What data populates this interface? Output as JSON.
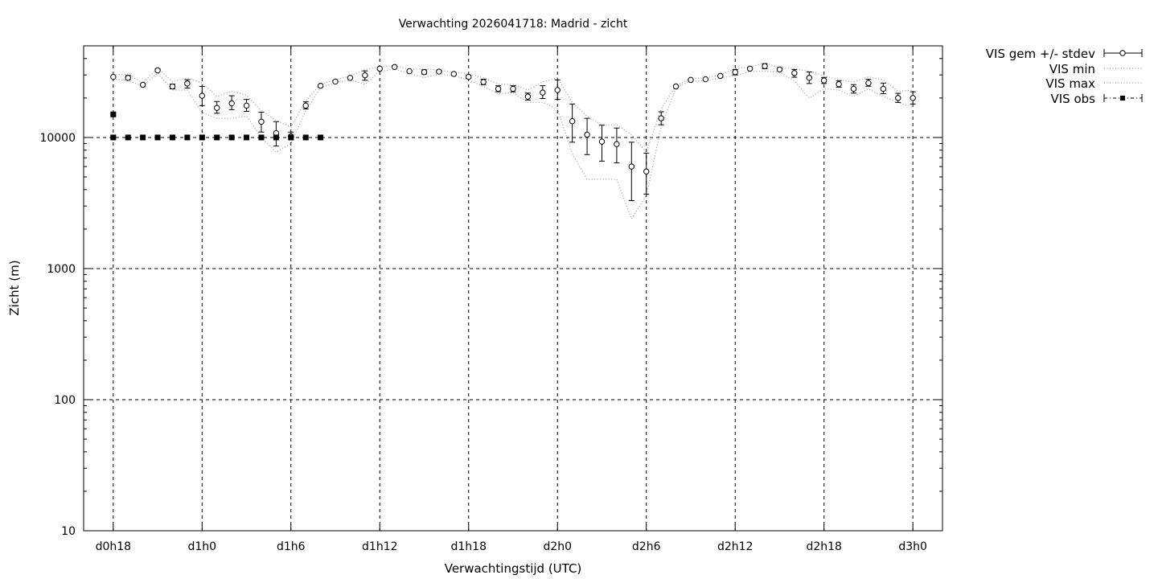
{
  "chart_data": {
    "type": "line",
    "title": "Verwachting 2026041718: Madrid - zicht",
    "xlabel": "Verwachtingstijd (UTC)",
    "ylabel": "Zicht (m)",
    "yscale": "log",
    "ylim": [
      10,
      50000
    ],
    "xlim": [
      -2,
      56
    ],
    "grid": true,
    "legend_position": "outside-top-right",
    "x_ticks": [
      {
        "x": 0,
        "label": "d0h18"
      },
      {
        "x": 6,
        "label": "d1h0"
      },
      {
        "x": 12,
        "label": "d1h6"
      },
      {
        "x": 18,
        "label": "d1h12"
      },
      {
        "x": 24,
        "label": "d1h18"
      },
      {
        "x": 30,
        "label": "d2h0"
      },
      {
        "x": 36,
        "label": "d2h6"
      },
      {
        "x": 42,
        "label": "d2h12"
      },
      {
        "x": 48,
        "label": "d2h18"
      },
      {
        "x": 54,
        "label": "d3h0"
      }
    ],
    "y_ticks": [
      {
        "y": 10,
        "label": "10"
      },
      {
        "y": 100,
        "label": "100"
      },
      {
        "y": 1000,
        "label": "1000"
      },
      {
        "y": 10000,
        "label": "10000"
      }
    ],
    "series": [
      {
        "name": "VIS gem +/- stdev",
        "style": "errorbars",
        "x": [
          0,
          1,
          2,
          3,
          4,
          5,
          6,
          7,
          8,
          9,
          10,
          11,
          12,
          13,
          14,
          15,
          16,
          17,
          18,
          19,
          20,
          21,
          22,
          23,
          24,
          25,
          26,
          27,
          28,
          29,
          30,
          31,
          32,
          33,
          34,
          35,
          36,
          37,
          38,
          39,
          40,
          41,
          42,
          43,
          44,
          45,
          46,
          47,
          48,
          49,
          50,
          51,
          52,
          53,
          54
        ],
        "y": [
          29000,
          28500,
          25200,
          32500,
          24500,
          25800,
          20800,
          16800,
          18200,
          17500,
          13200,
          10800,
          10200,
          17500,
          24800,
          26700,
          28500,
          29800,
          33500,
          34500,
          32000,
          31500,
          31800,
          30500,
          29000,
          26500,
          23500,
          23500,
          20500,
          22000,
          23000,
          13300,
          10500,
          9300,
          8900,
          6000,
          5500,
          14000,
          24500,
          27500,
          27800,
          29500,
          31500,
          33500,
          35000,
          33000,
          31000,
          28500,
          27200,
          25500,
          23500,
          26000,
          23500,
          20000,
          20000
        ],
        "low": [
          29000,
          27600,
          25200,
          32500,
          23500,
          23800,
          17500,
          15300,
          16300,
          15800,
          11000,
          8600,
          9600,
          16500,
          24800,
          26700,
          28500,
          27300,
          33500,
          34500,
          32000,
          30500,
          31800,
          30500,
          28200,
          25300,
          22300,
          22300,
          19300,
          19800,
          19500,
          9200,
          7400,
          6600,
          6400,
          3300,
          3700,
          12500,
          24500,
          27500,
          27800,
          29500,
          30000,
          33500,
          33500,
          33000,
          28800,
          25800,
          25800,
          24200,
          21800,
          24600,
          21600,
          18500,
          18000
        ],
        "high": [
          29000,
          29700,
          25200,
          33300,
          25500,
          27600,
          24500,
          18800,
          20800,
          19500,
          15600,
          13200,
          11000,
          18700,
          24800,
          26700,
          28500,
          32200,
          33500,
          34500,
          32000,
          32800,
          31800,
          30500,
          29800,
          27800,
          24800,
          24800,
          21800,
          24800,
          27500,
          18000,
          14000,
          12400,
          11800,
          9200,
          7600,
          15700,
          24500,
          27500,
          27800,
          29500,
          33000,
          33500,
          36500,
          33000,
          33000,
          31600,
          28700,
          27000,
          25300,
          27800,
          26000,
          21700,
          22300
        ],
        "color": "#000000"
      },
      {
        "name": "VIS min",
        "style": "dotted",
        "x": [
          0,
          1,
          2,
          3,
          4,
          5,
          6,
          7,
          8,
          9,
          10,
          11,
          12,
          13,
          14,
          15,
          16,
          17,
          18,
          19,
          20,
          21,
          22,
          23,
          24,
          25,
          26,
          27,
          28,
          29,
          30,
          31,
          32,
          33,
          34,
          35,
          36,
          37,
          38,
          39,
          40,
          41,
          42,
          43,
          44,
          45,
          46,
          47,
          48,
          49,
          50,
          51,
          52,
          53,
          54
        ],
        "y": [
          28000,
          27000,
          24800,
          31000,
          23000,
          23000,
          15500,
          14000,
          14000,
          14500,
          10000,
          7700,
          9000,
          16000,
          24000,
          26000,
          27500,
          25500,
          32000,
          33000,
          31000,
          28500,
          30500,
          29500,
          27500,
          24500,
          21500,
          22000,
          18500,
          18500,
          16500,
          7500,
          4800,
          4800,
          4800,
          2400,
          3600,
          12000,
          24000,
          27000,
          27000,
          28500,
          29500,
          32000,
          32000,
          31500,
          27000,
          20000,
          23500,
          23000,
          20500,
          23500,
          20500,
          18500,
          17000
        ],
        "color": "#a0a0a0"
      },
      {
        "name": "VIS max",
        "style": "dotted",
        "x": [
          0,
          1,
          2,
          3,
          4,
          5,
          6,
          7,
          8,
          9,
          10,
          11,
          12,
          13,
          14,
          15,
          16,
          17,
          18,
          19,
          20,
          21,
          22,
          23,
          24,
          25,
          26,
          27,
          28,
          29,
          30,
          31,
          32,
          33,
          34,
          35,
          36,
          37,
          38,
          39,
          40,
          41,
          42,
          43,
          44,
          45,
          46,
          47,
          48,
          49,
          50,
          51,
          52,
          53,
          54
        ],
        "y": [
          30000,
          30500,
          26000,
          34000,
          26500,
          28500,
          26000,
          20500,
          22500,
          21000,
          16000,
          13500,
          12000,
          19000,
          25500,
          27500,
          29500,
          33000,
          34500,
          35500,
          33000,
          33500,
          32500,
          31500,
          30500,
          28500,
          25500,
          25500,
          23000,
          26500,
          28500,
          18500,
          14500,
          12500,
          12500,
          10500,
          7700,
          16500,
          25000,
          28000,
          28500,
          30000,
          33500,
          34500,
          37000,
          34000,
          33500,
          32000,
          29500,
          27500,
          26500,
          29000,
          27500,
          22500,
          23000
        ],
        "color": "#a0a0a0"
      },
      {
        "name": "VIS obs",
        "style": "squares",
        "x": [
          0,
          0,
          1,
          2,
          3,
          4,
          5,
          6,
          7,
          8,
          9,
          10,
          11,
          12,
          13,
          14
        ],
        "y": [
          15000,
          10000,
          10000,
          10000,
          10000,
          10000,
          10000,
          10000,
          10000,
          10000,
          10000,
          10000,
          10000,
          10000,
          10000,
          10000
        ],
        "color": "#000000"
      }
    ]
  }
}
